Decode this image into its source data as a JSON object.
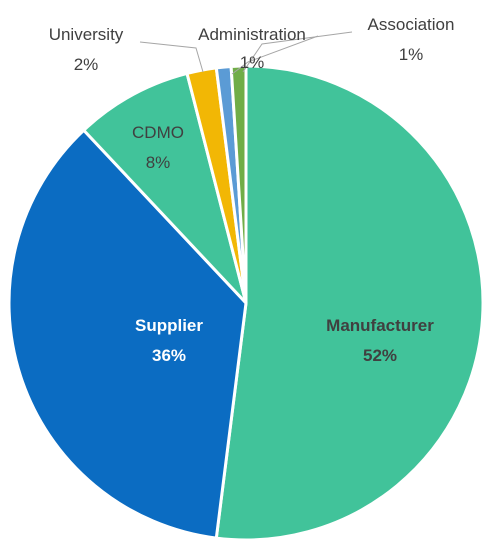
{
  "chart_data": {
    "type": "pie",
    "slices": [
      {
        "label": "Manufacturer",
        "value": 52,
        "value_label": "52%",
        "color": "#41C39A"
      },
      {
        "label": "Supplier",
        "value": 36,
        "value_label": "36%",
        "color": "#0B6CC2"
      },
      {
        "label": "CDMO",
        "value": 8,
        "value_label": "8%",
        "color": "#41C39A"
      },
      {
        "label": "University",
        "value": 2,
        "value_label": "2%",
        "color": "#F2B705"
      },
      {
        "label": "Administration",
        "value": 1,
        "value_label": "1%",
        "color": "#5B9BD5"
      },
      {
        "label": "Association",
        "value": 1,
        "value_label": "1%",
        "color": "#70AD47"
      }
    ],
    "legend": "none",
    "start_angle_deg": 0,
    "direction": "clockwise"
  }
}
